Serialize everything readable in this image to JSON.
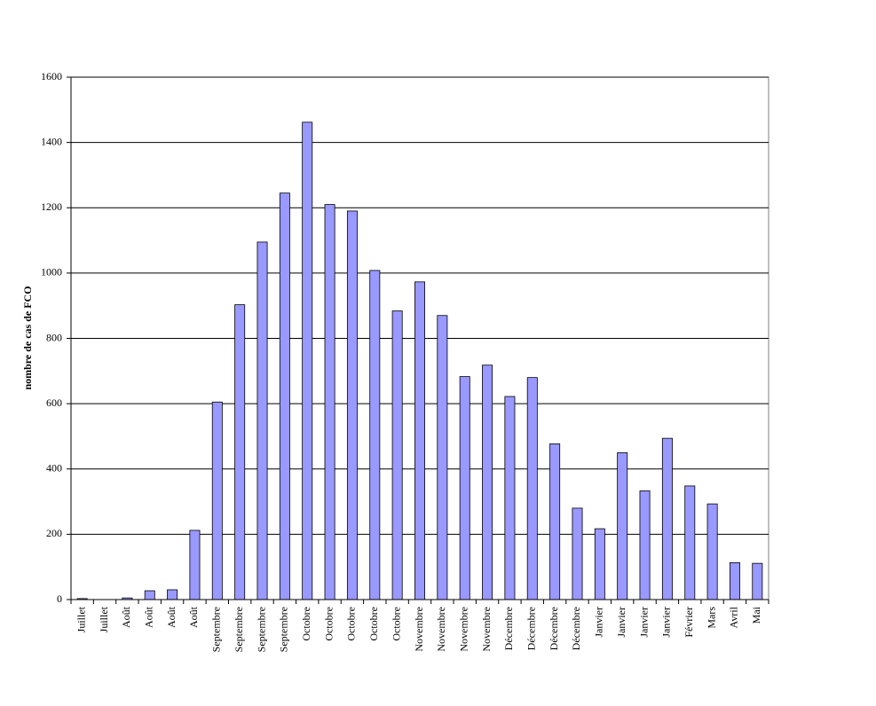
{
  "chart_data": {
    "type": "bar",
    "y_label": "nombre de cas de FCO",
    "categories": [
      "Juillet",
      "Juillet",
      "Août",
      "Août",
      "Août",
      "Août",
      "Septembre",
      "Septembre",
      "Septembre",
      "Septembre",
      "Octobre",
      "Octobre",
      "Octobre",
      "Octobre",
      "Octobre",
      "Novembre",
      "Novembre",
      "Novembre",
      "Novembre",
      "Décembre",
      "Décembre",
      "Décembre",
      "Décembre",
      "Janvier",
      "Janvier",
      "Janvier",
      "Janvier",
      "Février",
      "Mars",
      "Avril",
      "Mai"
    ],
    "values": [
      3,
      0,
      5,
      27,
      30,
      212,
      605,
      903,
      1095,
      1245,
      1462,
      1210,
      1190,
      1008,
      884,
      973,
      870,
      683,
      718,
      622,
      680,
      477,
      280,
      217,
      450,
      333,
      494,
      348,
      293,
      113,
      111
    ],
    "color": "#9999ff",
    "ylim": [
      0,
      1600
    ],
    "yticks": [
      0,
      200,
      400,
      600,
      800,
      1000,
      1200,
      1400,
      1600
    ],
    "grid": true
  }
}
